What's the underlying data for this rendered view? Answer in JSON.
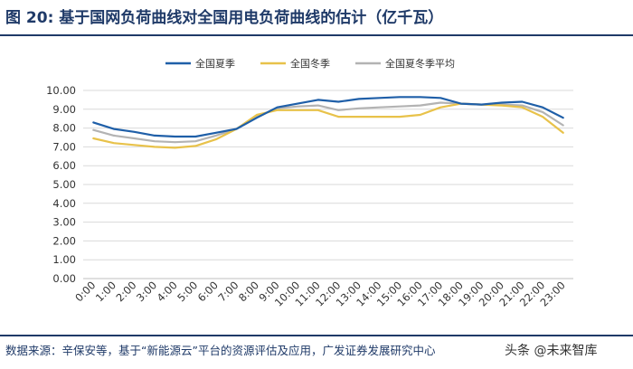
{
  "figure": {
    "title": "图 20: 基于国网负荷曲线对全国用电负荷曲线的估计（亿千瓦）",
    "source": "数据来源：辛保安等，基于“新能源云”平台的资源评估及应用，广发证券发展研究中心",
    "watermark": "头条 @未来智库"
  },
  "chart_data": {
    "type": "line",
    "title": "",
    "xlabel": "",
    "ylabel": "",
    "ylim": [
      0,
      10
    ],
    "yticks": [
      "0.00",
      "1.00",
      "2.00",
      "3.00",
      "4.00",
      "5.00",
      "6.00",
      "7.00",
      "8.00",
      "9.00",
      "10.00"
    ],
    "x": [
      "0:00",
      "1:00",
      "2:00",
      "3:00",
      "4:00",
      "5:00",
      "6:00",
      "7:00",
      "8:00",
      "9:00",
      "10:00",
      "11:00",
      "12:00",
      "13:00",
      "14:00",
      "15:00",
      "16:00",
      "17:00",
      "18:00",
      "19:00",
      "20:00",
      "21:00",
      "22:00",
      "23:00"
    ],
    "grid": "horizontal",
    "legend_position": "top",
    "series": [
      {
        "name": "全国夏季",
        "color": "#1f5fa8",
        "values": [
          8.3,
          7.95,
          7.8,
          7.6,
          7.55,
          7.55,
          7.75,
          7.95,
          8.55,
          9.1,
          9.3,
          9.5,
          9.4,
          9.55,
          9.6,
          9.65,
          9.65,
          9.6,
          9.3,
          9.25,
          9.35,
          9.4,
          9.1,
          8.55
        ]
      },
      {
        "name": "全国冬季",
        "color": "#e8c24a",
        "values": [
          7.45,
          7.2,
          7.1,
          7.0,
          6.95,
          7.05,
          7.4,
          7.95,
          8.7,
          8.95,
          8.95,
          8.95,
          8.6,
          8.6,
          8.6,
          8.6,
          8.7,
          9.1,
          9.3,
          9.25,
          9.2,
          9.1,
          8.6,
          7.75
        ]
      },
      {
        "name": "全国夏冬季平均",
        "color": "#b3b3b3",
        "values": [
          7.9,
          7.6,
          7.45,
          7.3,
          7.25,
          7.3,
          7.6,
          7.95,
          8.6,
          9.05,
          9.15,
          9.2,
          8.95,
          9.05,
          9.1,
          9.15,
          9.2,
          9.35,
          9.3,
          9.25,
          9.25,
          9.2,
          8.85,
          8.15
        ]
      }
    ]
  }
}
